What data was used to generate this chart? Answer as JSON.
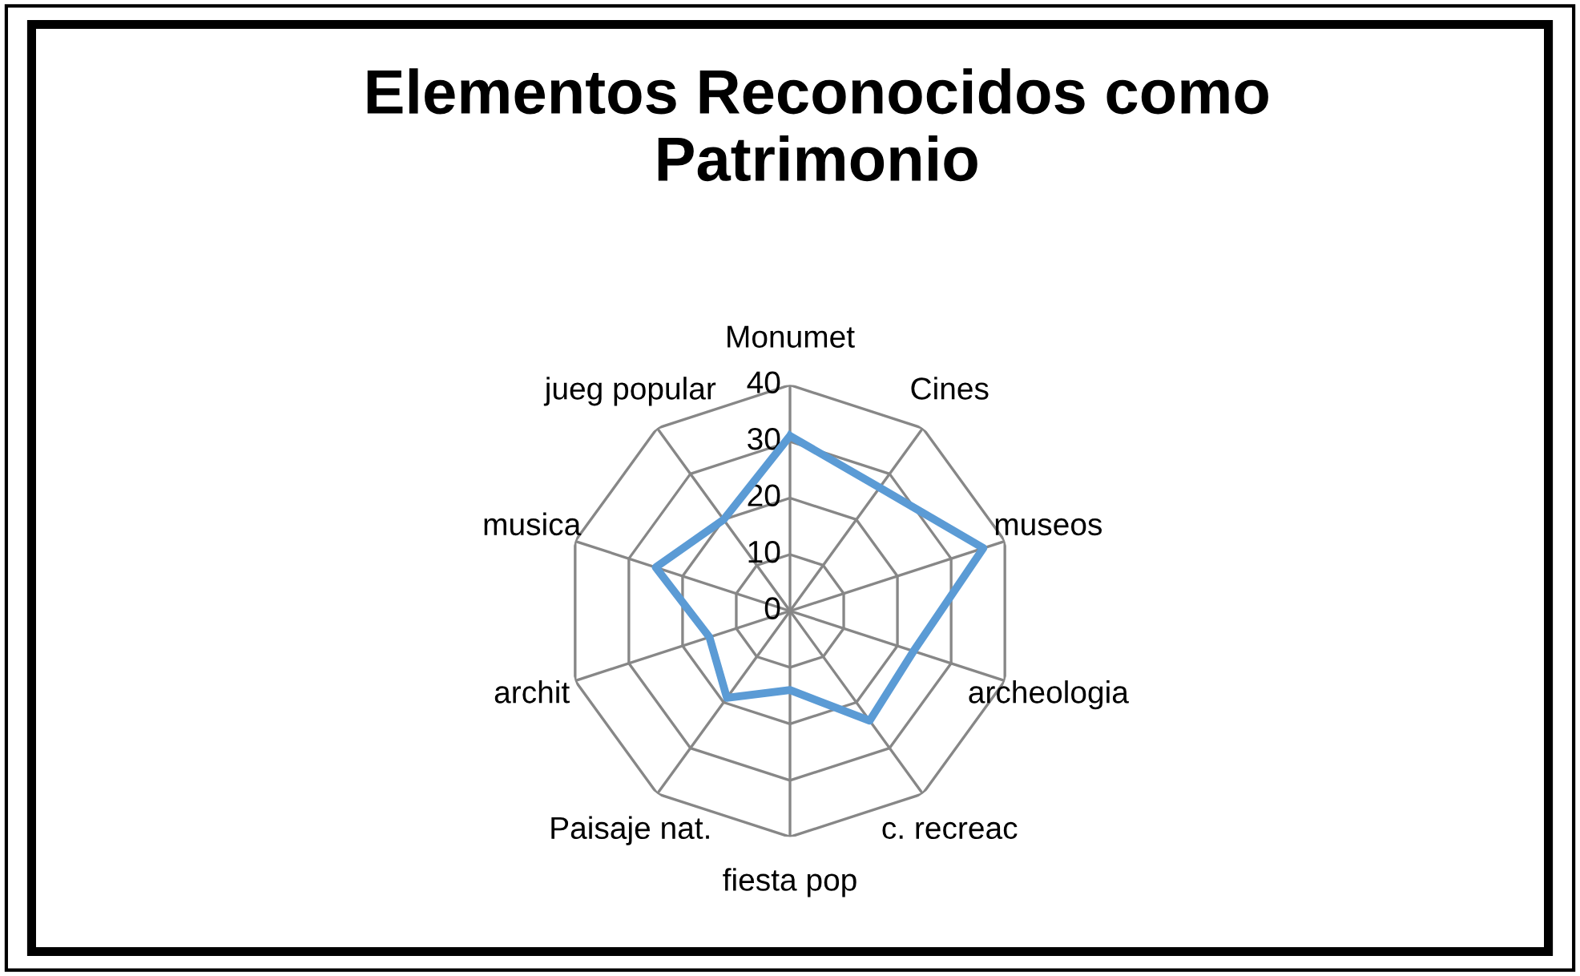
{
  "chart_data": {
    "type": "radar",
    "title": "Elementos Reconocidos como Patrimonio",
    "categories": [
      "Monumet",
      "Cines",
      "museos",
      "archeologia",
      "c. recreac",
      "fiesta pop",
      "Paisaje nat.",
      "archit",
      "musica",
      "jueg popular"
    ],
    "series": [
      {
        "color": "#5b9bd5",
        "values": [
          31,
          27,
          36,
          23,
          24,
          14,
          19,
          15,
          25,
          20
        ]
      }
    ],
    "ylim": [
      0,
      40
    ],
    "yticks": [
      0,
      10,
      20,
      30,
      40
    ],
    "grid": true,
    "marker": "none",
    "legend": false
  }
}
